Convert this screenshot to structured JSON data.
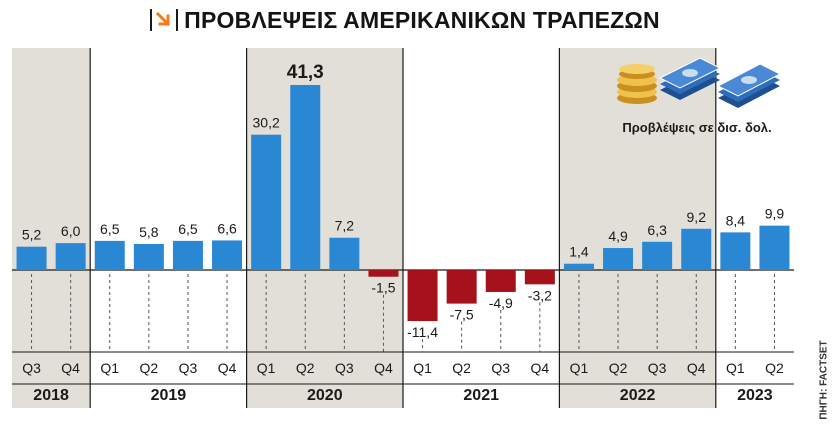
{
  "title": "ΠΡΟΒΛΕΨΕΙΣ ΑΜΕΡΙΚΑΝΙΚΩΝ ΤΡΑΠΕΖΩΝ",
  "source": "ΠΗΓΗ: FACTSET",
  "legend": {
    "label": "Προβλέψεις σε δισ. δολ."
  },
  "colors": {
    "positive": "#2a87d4",
    "negative": "#a5121b",
    "shade": "#e2dfd8"
  },
  "chart_data": {
    "type": "bar",
    "categories": [
      "Q3 2018",
      "Q4 2018",
      "Q1 2019",
      "Q2 2019",
      "Q3 2019",
      "Q4 2019",
      "Q1 2020",
      "Q2 2020",
      "Q3 2020",
      "Q4 2020",
      "Q1 2021",
      "Q2 2021",
      "Q3 2021",
      "Q4 2021",
      "Q1 2022",
      "Q2 2022",
      "Q3 2022",
      "Q4 2022",
      "Q1 2023",
      "Q2 2023"
    ],
    "quarters": [
      "Q3",
      "Q4",
      "Q1",
      "Q2",
      "Q3",
      "Q4",
      "Q1",
      "Q2",
      "Q3",
      "Q4",
      "Q1",
      "Q2",
      "Q3",
      "Q4",
      "Q1",
      "Q2",
      "Q3",
      "Q4",
      "Q1",
      "Q2"
    ],
    "values": [
      5.2,
      6.0,
      6.5,
      5.8,
      6.5,
      6.6,
      30.2,
      41.3,
      7.2,
      -1.5,
      -11.4,
      -7.5,
      -4.9,
      -3.2,
      1.4,
      4.9,
      6.3,
      9.2,
      8.4,
      9.9
    ],
    "value_labels": [
      "5,2",
      "6,0",
      "6,5",
      "5,8",
      "6,5",
      "6,6",
      "30,2",
      "41,3",
      "7,2",
      "-1,5",
      "-11,4",
      "-7,5",
      "-4,9",
      "-3,2",
      "1,4",
      "4,9",
      "6,3",
      "9,2",
      "8,4",
      "9,9"
    ],
    "years": [
      {
        "label": "2018",
        "start": 0,
        "count": 2,
        "shaded": true
      },
      {
        "label": "2019",
        "start": 2,
        "count": 4,
        "shaded": false
      },
      {
        "label": "2020",
        "start": 6,
        "count": 4,
        "shaded": true
      },
      {
        "label": "2021",
        "start": 10,
        "count": 4,
        "shaded": false
      },
      {
        "label": "2022",
        "start": 14,
        "count": 4,
        "shaded": true
      },
      {
        "label": "2023",
        "start": 18,
        "count": 2,
        "shaded": false
      }
    ],
    "highlight_index": 7
  }
}
